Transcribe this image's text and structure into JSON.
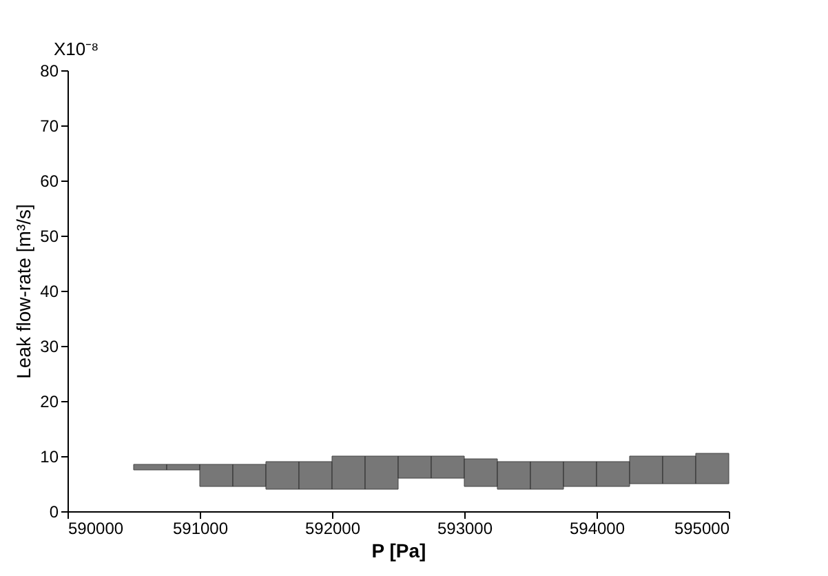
{
  "chart_data": {
    "type": "bar",
    "xlabel": "P [Pa]",
    "ylabel": "Leak flow-rate [m³/s]",
    "annotations": [
      "X10⁻⁸"
    ],
    "x": [
      590625,
      590875,
      591125,
      591375,
      591625,
      591875,
      592125,
      592375,
      592625,
      592875,
      593125,
      593375,
      593625,
      593875,
      594125,
      594375,
      594625,
      594875
    ],
    "base": [
      7.5,
      7.5,
      4.5,
      4.5,
      4,
      4,
      4,
      4,
      6,
      6,
      4.5,
      4,
      4,
      4.5,
      4.5,
      5,
      5,
      5
    ],
    "values": [
      1,
      1,
      4,
      4,
      5,
      5,
      6,
      6,
      4,
      4,
      5,
      5,
      5,
      4.5,
      4.5,
      5,
      5,
      5.5
    ],
    "color": "#606060",
    "xlim": [
      590000,
      595000
    ],
    "xticks": [
      590000,
      591000,
      592000,
      593000,
      594000,
      595000
    ],
    "ylim": [
      0,
      80
    ],
    "yticks": [
      0,
      10,
      20,
      30,
      40,
      50,
      60,
      70,
      80
    ],
    "grid": false
  }
}
